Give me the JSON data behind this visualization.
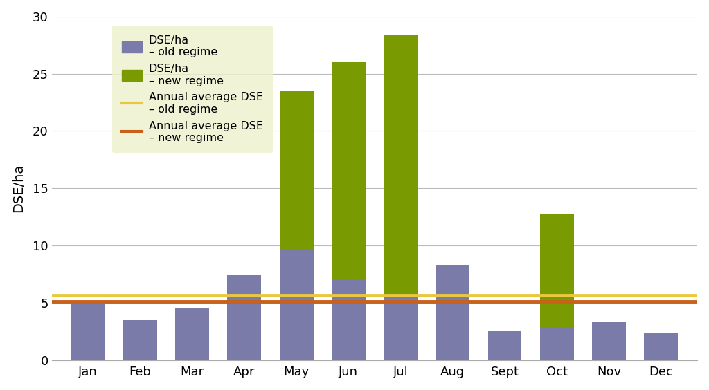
{
  "months": [
    "Jan",
    "Feb",
    "Mar",
    "Apr",
    "May",
    "Jun",
    "Jul",
    "Aug",
    "Sept",
    "Oct",
    "Nov",
    "Dec"
  ],
  "old_regime": [
    5.1,
    3.5,
    4.6,
    7.4,
    9.6,
    7.0,
    5.4,
    8.3,
    2.6,
    2.9,
    3.3,
    2.4
  ],
  "new_regime": [
    null,
    null,
    null,
    null,
    23.5,
    26.0,
    28.4,
    null,
    null,
    12.7,
    null,
    null
  ],
  "old_avg": 5.7,
  "new_avg": 5.1,
  "old_bar_color": "#7B7BAA",
  "new_bar_color": "#7A9A01",
  "old_avg_color": "#E8C840",
  "new_avg_color": "#C8621A",
  "legend_bg_color": "#EEF0CC",
  "ylabel": "DSE/ha",
  "ylim": [
    0,
    30
  ],
  "yticks": [
    0,
    5,
    10,
    15,
    20,
    25,
    30
  ],
  "bar_width": 0.65,
  "grid_color": "#BBBBBB"
}
